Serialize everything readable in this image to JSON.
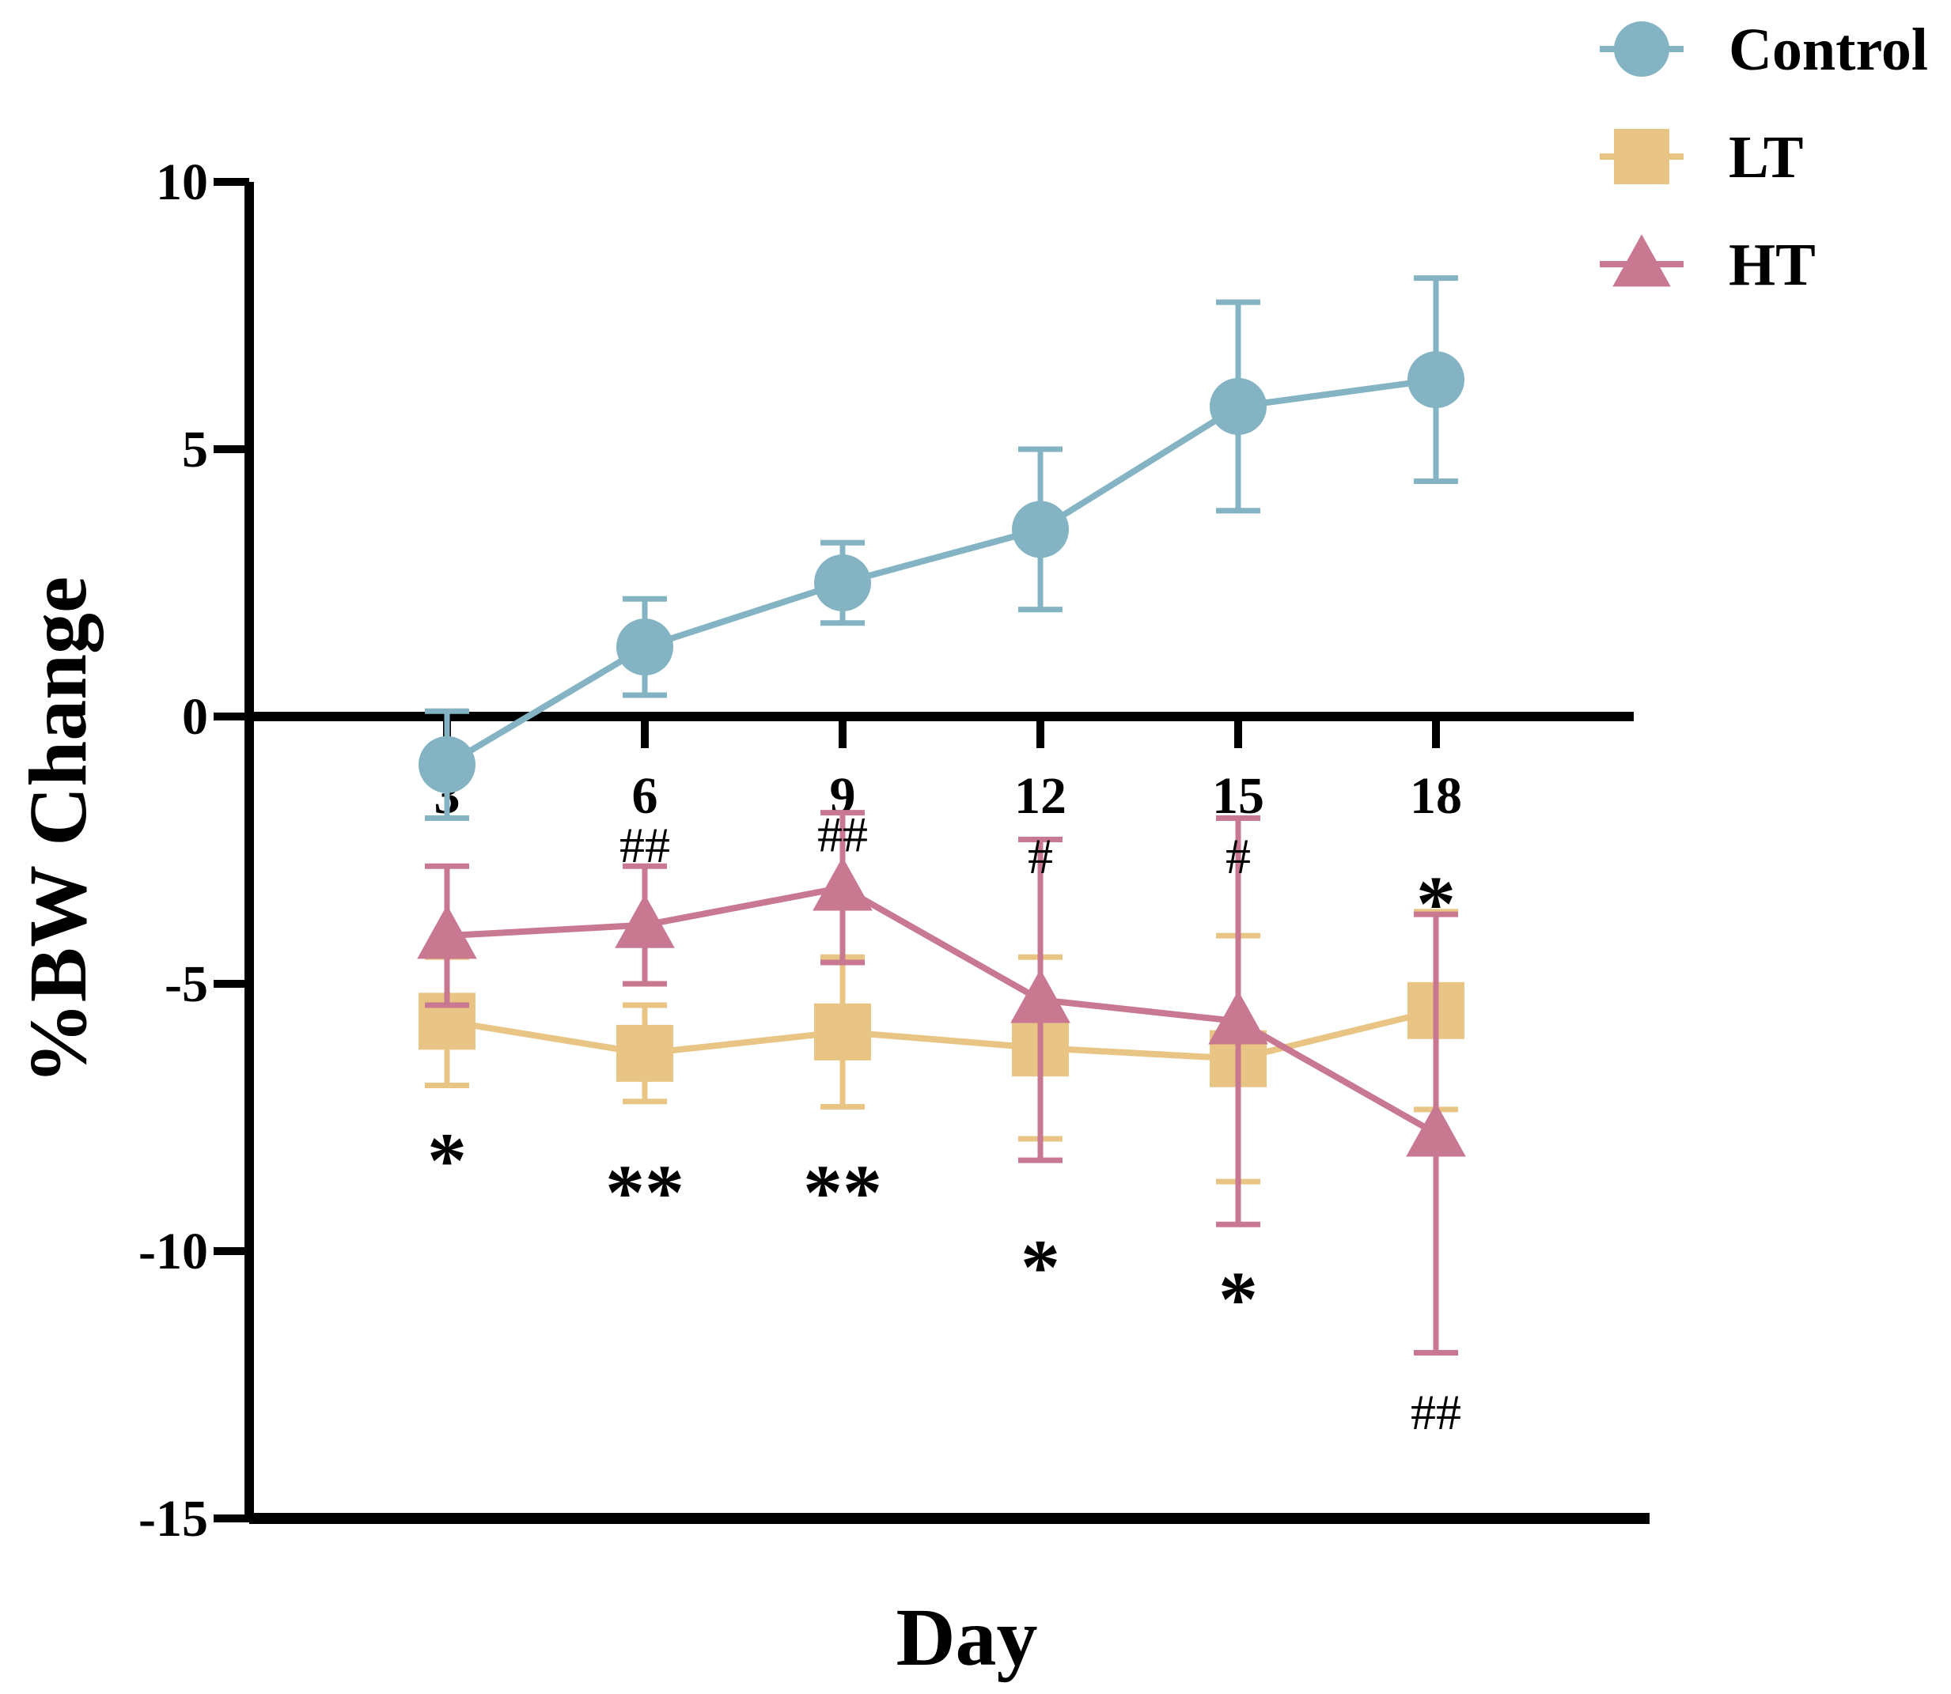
{
  "chart_data": {
    "type": "line",
    "title": "",
    "xlabel": "Day",
    "ylabel": "%BW Change",
    "x": [
      3,
      6,
      9,
      12,
      15,
      18
    ],
    "xticks": [
      "3",
      "6",
      "9",
      "12",
      "15",
      "18"
    ],
    "xlim": [
      0,
      21
    ],
    "ylim": [
      -15,
      10
    ],
    "yticks": [
      "10",
      "5",
      "0",
      "-5",
      "-10",
      "-15"
    ],
    "ytick_values": [
      10,
      5,
      0,
      -5,
      -10,
      -15
    ],
    "grid": false,
    "legend": "top-right",
    "series": [
      {
        "name": "Control",
        "marker": "circle",
        "color": "#84b4c4",
        "values": [
          -0.9,
          1.3,
          2.5,
          3.5,
          5.8,
          6.3
        ],
        "errors": [
          1.0,
          0.9,
          0.75,
          1.5,
          1.95,
          1.9
        ]
      },
      {
        "name": "LT",
        "marker": "square",
        "color": "#e8c585",
        "values": [
          -5.7,
          -6.3,
          -5.9,
          -6.2,
          -6.4,
          -5.5
        ],
        "errors": [
          1.2,
          0.9,
          1.4,
          1.7,
          2.3,
          1.85
        ]
      },
      {
        "name": "HT",
        "marker": "triangle",
        "color": "#c87890",
        "values": [
          -4.1,
          -3.9,
          -3.2,
          -5.3,
          -5.7,
          -7.8
        ],
        "errors": [
          1.3,
          1.1,
          1.4,
          3.0,
          3.8,
          4.1
        ]
      }
    ],
    "annotations": [
      {
        "text": "##",
        "x": 6,
        "y": -2.4,
        "kind": "hash"
      },
      {
        "text": "##",
        "x": 9,
        "y": -2.2,
        "kind": "hash"
      },
      {
        "text": "#",
        "x": 12,
        "y": -2.6,
        "kind": "hash"
      },
      {
        "text": "#",
        "x": 15,
        "y": -2.6,
        "kind": "hash"
      },
      {
        "text": "*",
        "x": 18,
        "y": -3.4,
        "kind": "star"
      },
      {
        "text": "*",
        "x": 3,
        "y": -8.2,
        "kind": "star"
      },
      {
        "text": "**",
        "x": 6,
        "y": -8.8,
        "kind": "star"
      },
      {
        "text": "**",
        "x": 9,
        "y": -8.8,
        "kind": "star"
      },
      {
        "text": "*",
        "x": 12,
        "y": -10.2,
        "kind": "star"
      },
      {
        "text": "*",
        "x": 15,
        "y": -10.8,
        "kind": "star"
      },
      {
        "text": "##",
        "x": 18,
        "y": -13.0,
        "kind": "hash"
      }
    ]
  }
}
